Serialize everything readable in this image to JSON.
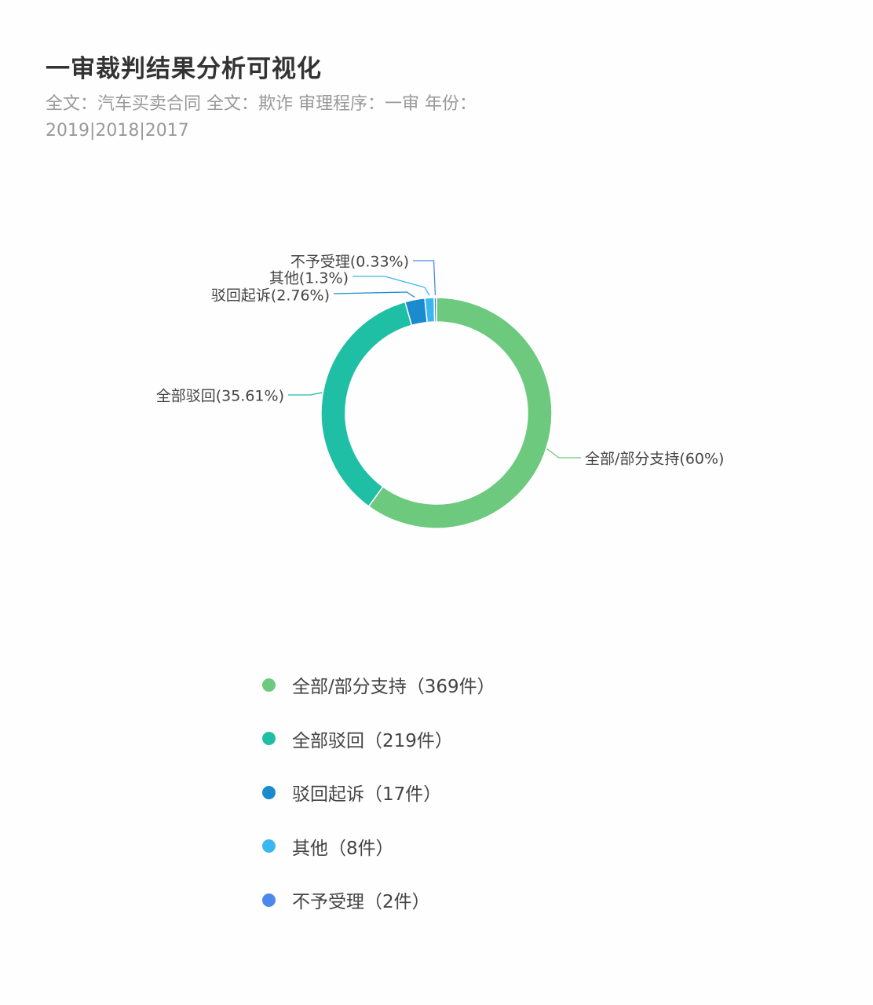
{
  "title": "一审裁判结果分析可视化",
  "subtitle": "全文：汽车买卖合同  全文：欺诈  审理程序：一审  年份：2019|2018|2017",
  "chart_data": {
    "type": "pie",
    "donut": true,
    "categories": [
      "全部/部分支持",
      "全部驳回",
      "驳回起诉",
      "其他",
      "不予受理"
    ],
    "values": [
      369,
      219,
      17,
      8,
      2
    ],
    "unit": "件",
    "percent_labels": [
      "全部/部分支持(60%)",
      "全部驳回(35.61%)",
      "驳回起诉(2.76%)",
      "其他(1.3%)",
      "不予受理(0.33%)"
    ],
    "legend_labels": [
      "全部/部分支持（369件）",
      "全部驳回（219件）",
      "驳回起诉（17件）",
      "其他（8件）",
      "不予受理（2件）"
    ],
    "colors": [
      "#6cc97e",
      "#1fbfa6",
      "#1a8bcc",
      "#3ab7ef",
      "#4a88ee"
    ],
    "legend_position": "bottom"
  }
}
